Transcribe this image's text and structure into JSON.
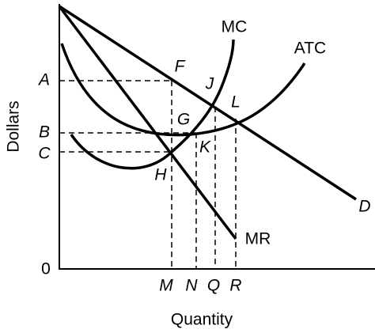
{
  "axes": {
    "y_label": "Dollars",
    "x_label": "Quantity",
    "origin": "0",
    "y_ticks": [
      "A",
      "B",
      "C"
    ],
    "x_ticks": [
      "M",
      "N",
      "Q",
      "R"
    ]
  },
  "curves": {
    "mc": "MC",
    "atc": "ATC",
    "demand": "D",
    "mr": "MR"
  },
  "points": [
    "F",
    "J",
    "L",
    "G",
    "K",
    "H"
  ]
}
